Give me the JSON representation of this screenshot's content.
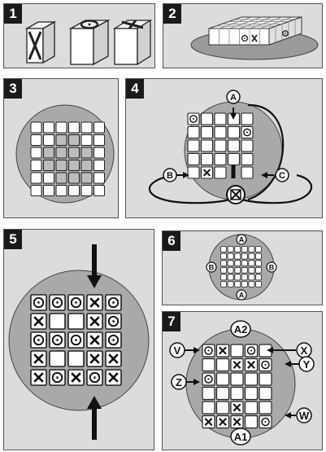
{
  "steps": [
    {
      "number": "1"
    },
    {
      "number": "2"
    },
    {
      "number": "3"
    },
    {
      "number": "4",
      "labels": {
        "a": "A",
        "b": "B",
        "c": "C"
      }
    },
    {
      "number": "5"
    },
    {
      "number": "6",
      "labels": {
        "top": "A",
        "bottom": "A",
        "left": "B",
        "right": "B"
      }
    },
    {
      "number": "7",
      "labels": {
        "a2": "A2",
        "a1": "A1",
        "v": "V",
        "x": "X",
        "y": "Y",
        "z": "Z",
        "w": "W"
      }
    }
  ],
  "colors": {
    "panel": "#dcdcdc",
    "board": "#a9a9a9",
    "badge": "#1a1a1a",
    "cell": "#ffffff",
    "shade": "#bdbdbd"
  },
  "step5_grid": [
    [
      "O",
      "O",
      "O",
      "X",
      "O"
    ],
    [
      "X",
      "",
      "",
      "X",
      "O"
    ],
    [
      "O",
      "O",
      "O",
      "X",
      "O"
    ],
    [
      "X",
      "",
      "",
      "X",
      "X"
    ],
    [
      "X",
      "O",
      "X",
      "O",
      "X"
    ]
  ],
  "step7_grid": [
    [
      "O",
      "X",
      "",
      "O",
      ""
    ],
    [
      "",
      "",
      "X",
      "X",
      "O"
    ],
    [
      "O",
      "",
      "",
      "",
      ""
    ],
    [
      "",
      "",
      "",
      "",
      ""
    ],
    [
      "",
      "",
      "X",
      "",
      ""
    ],
    [
      "X",
      "X",
      "X",
      "",
      "O"
    ]
  ]
}
